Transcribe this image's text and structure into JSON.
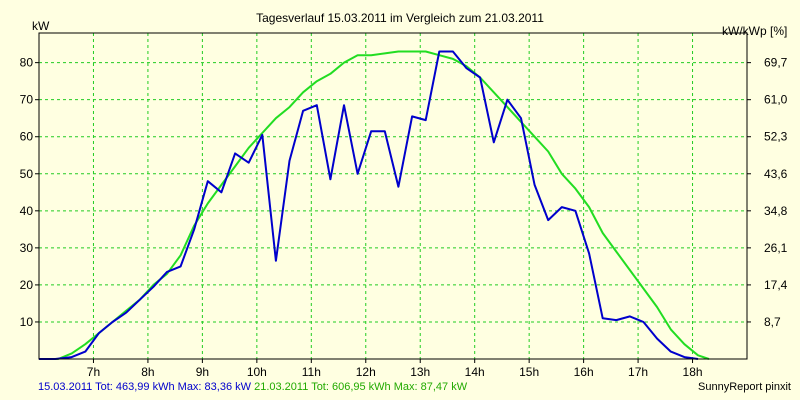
{
  "chart_data": {
    "type": "line",
    "title": "Tagesverlauf 15.03.2011 im Vergleich zum 21.03.2011",
    "ylabel_left": "kW",
    "ylabel_right": "kW/kWp [%]",
    "xlabel": "",
    "xlim": [
      6.0,
      19.0
    ],
    "ylim": [
      0,
      88
    ],
    "x_ticks": [
      {
        "value": 7,
        "label": "7h"
      },
      {
        "value": 8,
        "label": "8h"
      },
      {
        "value": 9,
        "label": "9h"
      },
      {
        "value": 10,
        "label": "10h"
      },
      {
        "value": 11,
        "label": "11h"
      },
      {
        "value": 12,
        "label": "12h"
      },
      {
        "value": 13,
        "label": "13h"
      },
      {
        "value": 14,
        "label": "14h"
      },
      {
        "value": 15,
        "label": "15h"
      },
      {
        "value": 16,
        "label": "16h"
      },
      {
        "value": 17,
        "label": "17h"
      },
      {
        "value": 18,
        "label": "18h"
      }
    ],
    "y_ticks_left": [
      {
        "value": 10,
        "label": "10"
      },
      {
        "value": 20,
        "label": "20"
      },
      {
        "value": 30,
        "label": "30"
      },
      {
        "value": 40,
        "label": "40"
      },
      {
        "value": 50,
        "label": "50"
      },
      {
        "value": 60,
        "label": "60"
      },
      {
        "value": 70,
        "label": "70"
      },
      {
        "value": 80,
        "label": "80"
      }
    ],
    "y_ticks_right": [
      {
        "value": 8.7,
        "label": "8,7"
      },
      {
        "value": 17.4,
        "label": "17,4"
      },
      {
        "value": 26.1,
        "label": "26,1"
      },
      {
        "value": 34.8,
        "label": "34,8"
      },
      {
        "value": 43.6,
        "label": "43,6"
      },
      {
        "value": 52.3,
        "label": "52,3"
      },
      {
        "value": 61.0,
        "label": "61,0"
      },
      {
        "value": 69.7,
        "label": "69,7"
      }
    ],
    "right_axis_max": 76.6,
    "grid": true,
    "series": [
      {
        "name": "15.03.2011",
        "color": "#0000cc",
        "x": [
          6.0,
          6.3,
          6.6,
          6.85,
          7.1,
          7.35,
          7.6,
          7.85,
          8.1,
          8.35,
          8.6,
          8.85,
          9.1,
          9.35,
          9.6,
          9.85,
          10.1,
          10.35,
          10.6,
          10.85,
          11.1,
          11.35,
          11.6,
          11.85,
          12.1,
          12.35,
          12.6,
          12.85,
          13.1,
          13.35,
          13.6,
          13.85,
          14.1,
          14.35,
          14.6,
          14.85,
          15.1,
          15.35,
          15.6,
          15.85,
          16.1,
          16.35,
          16.6,
          16.85,
          17.1,
          17.35,
          17.6,
          17.85,
          18.1
        ],
        "y": [
          0,
          0,
          0.5,
          2,
          7,
          10,
          12.5,
          16,
          19.5,
          23.5,
          25,
          35,
          48,
          45,
          55.5,
          53,
          60.5,
          26.5,
          53.5,
          67,
          68.5,
          48.5,
          68.5,
          50,
          61.5,
          61.5,
          46.5,
          65.5,
          64.5,
          83,
          83,
          78.5,
          76,
          58.5,
          70,
          65,
          47,
          37.5,
          41,
          40,
          28.5,
          11,
          10.5,
          11.5,
          10,
          5.5,
          2,
          0.5,
          0
        ]
      },
      {
        "name": "21.03.2011",
        "color": "#22dd22",
        "x": [
          6.0,
          6.35,
          6.6,
          6.85,
          7.1,
          7.35,
          7.6,
          7.85,
          8.1,
          8.35,
          8.6,
          8.85,
          9.1,
          9.35,
          9.6,
          9.85,
          10.1,
          10.35,
          10.6,
          10.85,
          11.1,
          11.35,
          11.6,
          11.85,
          12.1,
          12.35,
          12.6,
          12.85,
          13.1,
          13.35,
          13.6,
          13.85,
          14.1,
          14.35,
          14.6,
          14.85,
          15.1,
          15.35,
          15.6,
          15.85,
          16.1,
          16.35,
          16.6,
          16.85,
          17.1,
          17.35,
          17.6,
          17.85,
          18.1,
          18.3
        ],
        "y": [
          0,
          0,
          1.5,
          4,
          7,
          10,
          13,
          16,
          20,
          23,
          28,
          36,
          42,
          47,
          52,
          57,
          61,
          65,
          68,
          72,
          75,
          77,
          80,
          82,
          82,
          82.5,
          83,
          83,
          83,
          82,
          81,
          79,
          76,
          72,
          68,
          64,
          60,
          56,
          50,
          46,
          41,
          34,
          29,
          24,
          19,
          14,
          8,
          4,
          1,
          0
        ]
      }
    ]
  },
  "footer": {
    "series1_date": "15.03.2011",
    "series1_stats": "Tot: 463,99 kWh Max: 83,36 kW",
    "series2_date": "21.03.2011",
    "series2_stats": "Tot: 606,95 kWh Max: 87,47 kW",
    "credit": "SunnyReport pinxit"
  }
}
